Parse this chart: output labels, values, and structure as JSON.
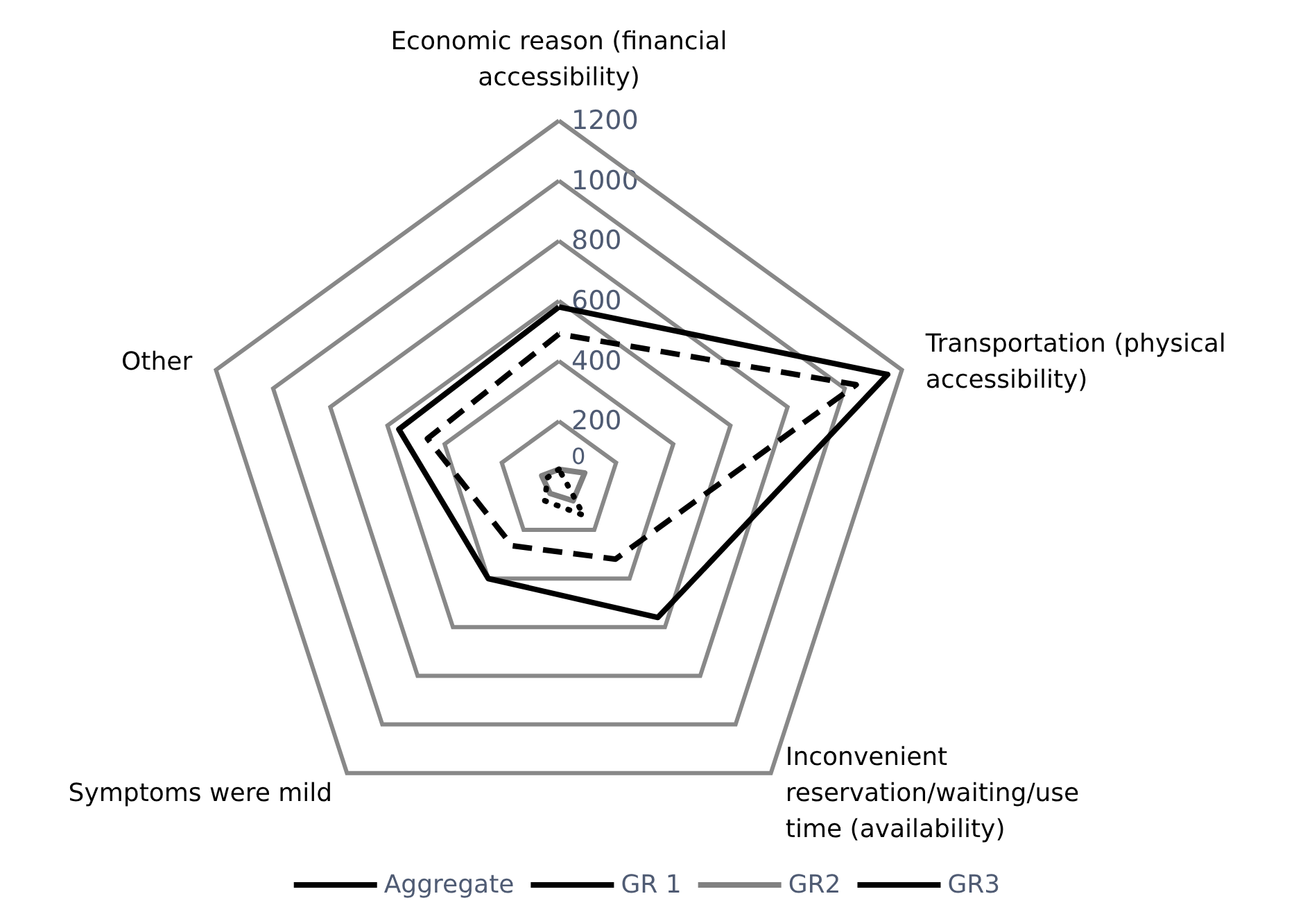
{
  "chart_data": {
    "type": "radar",
    "categories": [
      "Economic reason (financial accessibility)",
      "Transportation (physical accessibility)",
      "Inconvenient reservation/waiting/use time (availability)",
      "Symptoms were mild",
      "Other"
    ],
    "series": [
      {
        "name": "Aggregate",
        "color": "#000000",
        "line_style": "solid",
        "values": [
          580,
          1150,
          560,
          400,
          560
        ]
      },
      {
        "name": "GR 1",
        "color": "#000000",
        "line_style": "dashed",
        "values": [
          490,
          1040,
          320,
          265,
          460
        ]
      },
      {
        "name": "GR2",
        "color": "#808080",
        "line_style": "solid",
        "values": [
          40,
          90,
          80,
          50,
          60
        ]
      },
      {
        "name": "GR3",
        "color": "#000000",
        "line_style": "dotted",
        "values": [
          40,
          20,
          140,
          80,
          40
        ]
      }
    ],
    "ylim": [
      0,
      1200
    ],
    "yticks": [
      0,
      200,
      400,
      600,
      800,
      1000,
      1200
    ],
    "legend": "bottom",
    "marker": "none"
  }
}
